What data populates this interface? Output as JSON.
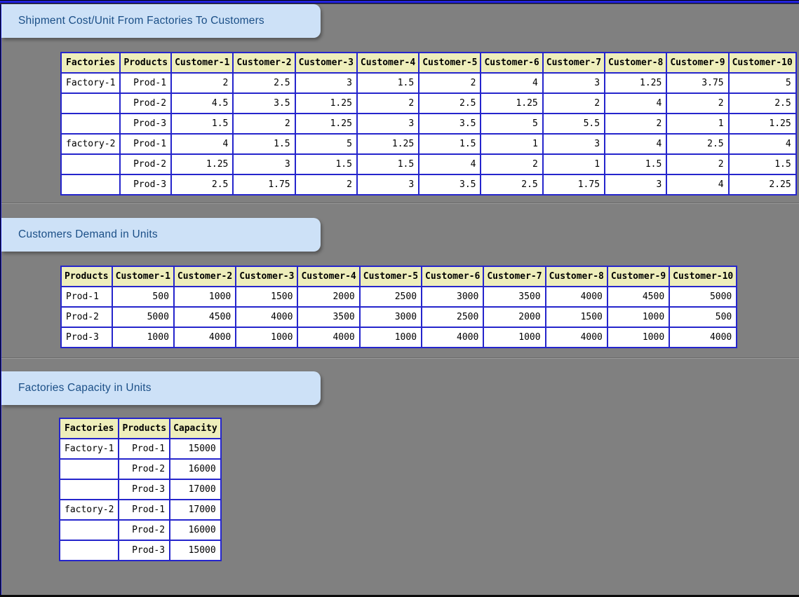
{
  "window": {
    "background_color": "#808080",
    "top_accent_color": "#2323dd",
    "table_border_color": "#2525cc",
    "table_header_bg_color": "#eeeebb",
    "badge_bg_color": "#cde1f7",
    "badge_text_color": "#1b4f87"
  },
  "sections": [
    {
      "title": "Shipment Cost/Unit From Factories To Customers",
      "table": {
        "columns": [
          "Factories",
          "Products",
          "Customer-1",
          "Customer-2",
          "Customer-3",
          "Customer-4",
          "Customer-5",
          "Customer-6",
          "Customer-7",
          "Customer-8",
          "Customer-9",
          "Customer-10"
        ],
        "rows": [
          [
            "Factory-1",
            "Prod-1",
            "2",
            "2.5",
            "3",
            "1.5",
            "2",
            "4",
            "3",
            "1.25",
            "3.75",
            "5"
          ],
          [
            "",
            "Prod-2",
            "4.5",
            "3.5",
            "1.25",
            "2",
            "2.5",
            "1.25",
            "2",
            "4",
            "2",
            "2.5"
          ],
          [
            "",
            "Prod-3",
            "1.5",
            "2",
            "1.25",
            "3",
            "3.5",
            "5",
            "5.5",
            "2",
            "1",
            "1.25"
          ],
          [
            "factory-2",
            "Prod-1",
            "4",
            "1.5",
            "5",
            "1.25",
            "1.5",
            "1",
            "3",
            "4",
            "2.5",
            "4"
          ],
          [
            "",
            "Prod-2",
            "1.25",
            "3",
            "1.5",
            "1.5",
            "4",
            "2",
            "1",
            "1.5",
            "2",
            "1.5"
          ],
          [
            "",
            "Prod-3",
            "2.5",
            "1.75",
            "2",
            "3",
            "3.5",
            "2.5",
            "1.75",
            "3",
            "4",
            "2.25"
          ]
        ]
      }
    },
    {
      "title": "Customers Demand in Units",
      "table": {
        "columns": [
          "Products",
          "Customer-1",
          "Customer-2",
          "Customer-3",
          "Customer-4",
          "Customer-5",
          "Customer-6",
          "Customer-7",
          "Customer-8",
          "Customer-9",
          "Customer-10"
        ],
        "rows": [
          [
            "Prod-1",
            "500",
            "1000",
            "1500",
            "2000",
            "2500",
            "3000",
            "3500",
            "4000",
            "4500",
            "5000"
          ],
          [
            "Prod-2",
            "5000",
            "4500",
            "4000",
            "3500",
            "3000",
            "2500",
            "2000",
            "1500",
            "1000",
            "500"
          ],
          [
            "Prod-3",
            "1000",
            "4000",
            "1000",
            "4000",
            "1000",
            "4000",
            "1000",
            "4000",
            "1000",
            "4000"
          ]
        ]
      }
    },
    {
      "title": "Factories Capacity in Units",
      "table": {
        "columns": [
          "Factories",
          "Products",
          "Capacity"
        ],
        "rows": [
          [
            "Factory-1",
            "Prod-1",
            "15000"
          ],
          [
            "",
            "Prod-2",
            "16000"
          ],
          [
            "",
            "Prod-3",
            "17000"
          ],
          [
            "factory-2",
            "Prod-1",
            "17000"
          ],
          [
            "",
            "Prod-2",
            "16000"
          ],
          [
            "",
            "Prod-3",
            "15000"
          ]
        ]
      }
    }
  ]
}
